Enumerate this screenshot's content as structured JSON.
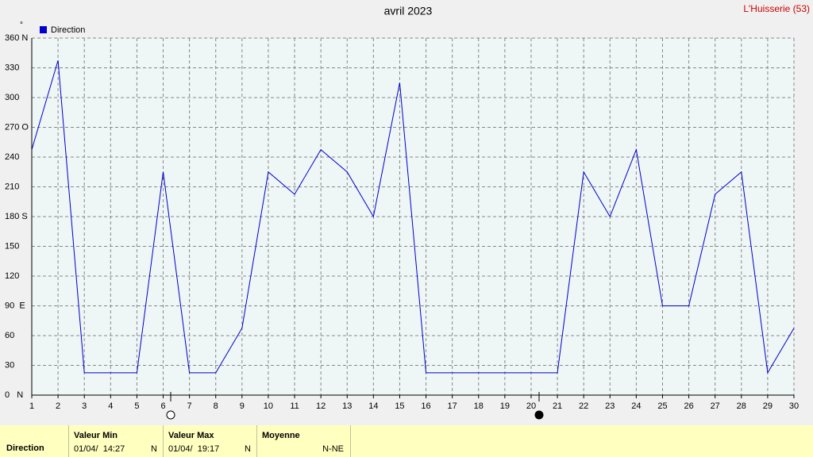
{
  "chart_data": {
    "type": "line",
    "title": "avril 2023",
    "location": "L'Huisserie (53)",
    "y_unit": "°",
    "x": [
      1,
      2,
      3,
      4,
      5,
      6,
      7,
      8,
      9,
      10,
      11,
      12,
      13,
      14,
      15,
      16,
      17,
      18,
      19,
      20,
      21,
      22,
      23,
      24,
      25,
      26,
      27,
      28,
      29,
      30
    ],
    "series": [
      {
        "name": "Direction",
        "color": "#0000cc",
        "values": [
          247.5,
          337.5,
          22.5,
          22.5,
          22.5,
          225,
          22.5,
          22.5,
          67.5,
          225,
          202.5,
          247.5,
          225,
          180,
          315,
          22.5,
          22.5,
          22.5,
          22.5,
          22.5,
          22.5,
          225,
          180,
          247.5,
          90,
          90,
          202.5,
          225,
          22.5,
          67.5
        ]
      }
    ],
    "xlim": [
      1,
      30
    ],
    "xticks": [
      1,
      2,
      3,
      4,
      5,
      6,
      7,
      8,
      9,
      10,
      11,
      12,
      13,
      14,
      15,
      16,
      17,
      18,
      19,
      20,
      21,
      22,
      23,
      24,
      25,
      26,
      27,
      28,
      29,
      30
    ],
    "ylim": [
      0,
      360
    ],
    "yticks": [
      {
        "value": 0,
        "label": "0   N"
      },
      30,
      60,
      {
        "value": 90,
        "label": "90  E"
      },
      120,
      150,
      {
        "value": 180,
        "label": "180 S"
      },
      210,
      240,
      {
        "value": 270,
        "label": "270 O"
      },
      300,
      330,
      {
        "value": 360,
        "label": "360 N"
      }
    ],
    "grid": true,
    "legend": "top-left"
  },
  "stats_table": {
    "row_label": "Direction",
    "columns": [
      {
        "header": "Valeur Min",
        "date": "01/04/  14:27",
        "value": "N"
      },
      {
        "header": "Valeur Max",
        "date": "01/04/  19:17",
        "value": "N"
      },
      {
        "header": "Moyenne",
        "value": "N-NE"
      }
    ]
  }
}
